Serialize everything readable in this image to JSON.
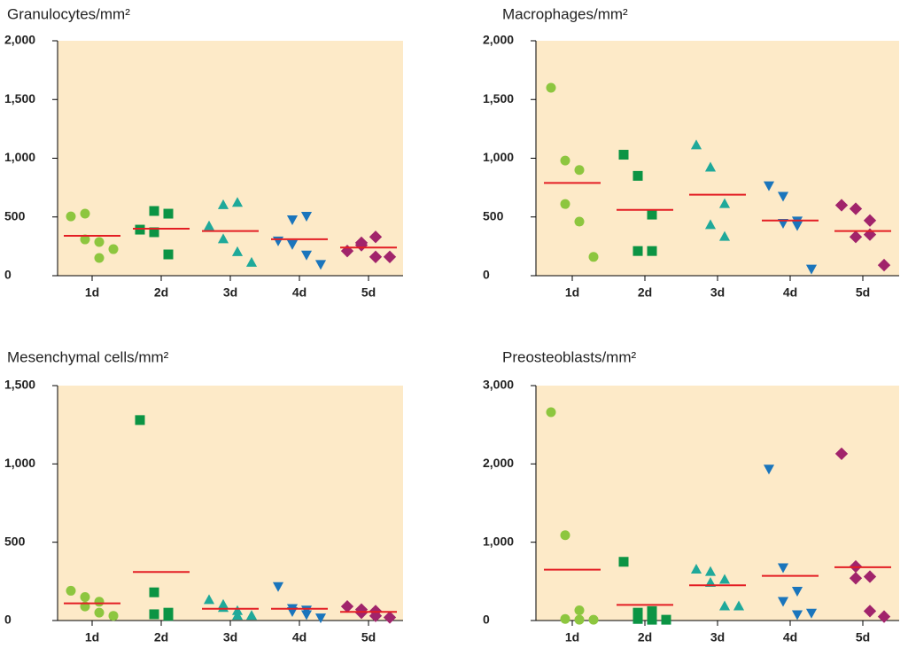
{
  "chart_data": [
    {
      "type": "dot",
      "title": "Granulocytes/mm²",
      "categories": [
        "1d",
        "2d",
        "3d",
        "4d",
        "5d"
      ],
      "values": [
        [
          505,
          528,
          287,
          309,
          151,
          226
        ],
        [
          392,
          370,
          528,
          551,
          181
        ],
        [
          420,
          600,
          620,
          310,
          200,
          110
        ],
        [
          300,
          480,
          510,
          270,
          180,
          100
        ],
        [
          210,
          280,
          330,
          260,
          160,
          160
        ]
      ],
      "medians": [
        340,
        400,
        380,
        310,
        240
      ],
      "ylim": [
        0,
        2000
      ],
      "yticks": [
        0,
        500,
        {
          "value": 1000,
          "label": "1,000"
        },
        {
          "value": 1500,
          "label": "1,500"
        },
        {
          "value": 2000,
          "label": "2,000"
        }
      ],
      "colors": [
        "#8dc63f",
        "#0b9444",
        "#1fa99a",
        "#1a75bc",
        "#a1246b"
      ],
      "markers": [
        "circle",
        "square",
        "triangle-up",
        "triangle-down",
        "diamond"
      ],
      "median_color": "#e31e24"
    },
    {
      "type": "dot",
      "title": "Macrophages/mm²",
      "categories": [
        "1d",
        "2d",
        "3d",
        "4d",
        "5d"
      ],
      "values": [
        [
          1600,
          980,
          900,
          610,
          460,
          160
        ],
        [
          1030,
          850,
          520,
          210,
          210
        ],
        [
          1110,
          920,
          610,
          430,
          330
        ],
        [
          770,
          680,
          470,
          450,
          430,
          60
        ],
        [
          600,
          570,
          470,
          330,
          350,
          90
        ]
      ],
      "medians": [
        790,
        560,
        690,
        470,
        380
      ],
      "ylim": [
        0,
        2000
      ],
      "yticks": [
        0,
        500,
        {
          "value": 1000,
          "label": "1,000"
        },
        {
          "value": 1500,
          "label": "1,500"
        },
        {
          "value": 2000,
          "label": "2,000"
        }
      ],
      "colors": [
        "#8dc63f",
        "#0b9444",
        "#1fa99a",
        "#1a75bc",
        "#a1246b"
      ],
      "markers": [
        "circle",
        "square",
        "triangle-up",
        "triangle-down",
        "diamond"
      ],
      "median_color": "#e31e24"
    },
    {
      "type": "dot",
      "title": "Mesenchymal cells/mm²",
      "categories": [
        "1d",
        "2d",
        "3d",
        "4d",
        "5d"
      ],
      "values": [
        [
          190,
          150,
          120,
          90,
          50,
          30
        ],
        [
          1280,
          180,
          50,
          40,
          30
        ],
        [
          130,
          100,
          60,
          80,
          30,
          30
        ],
        [
          220,
          80,
          70,
          60,
          40,
          20
        ],
        [
          90,
          70,
          60,
          50,
          30,
          20
        ]
      ],
      "medians": [
        110,
        310,
        75,
        75,
        55
      ],
      "ylim": [
        0,
        1500
      ],
      "yticks": [
        0,
        500,
        {
          "value": 1000,
          "label": "1,000"
        },
        {
          "value": 1500,
          "label": "1,500"
        }
      ],
      "colors": [
        "#8dc63f",
        "#0b9444",
        "#1fa99a",
        "#1a75bc",
        "#a1246b"
      ],
      "markers": [
        "circle",
        "square",
        "triangle-up",
        "triangle-down",
        "diamond"
      ],
      "median_color": "#e31e24"
    },
    {
      "type": "dot",
      "title": "Preosteoblasts/mm²",
      "categories": [
        "1d",
        "2d",
        "3d",
        "4d",
        "5d"
      ],
      "values": [
        [
          2660,
          1090,
          130,
          20,
          10,
          10
        ],
        [
          750,
          100,
          120,
          20,
          10,
          10
        ],
        [
          650,
          620,
          520,
          480,
          180,
          180
        ],
        [
          1940,
          680,
          380,
          250,
          80,
          100
        ],
        [
          2130,
          690,
          560,
          540,
          120,
          50
        ]
      ],
      "medians": [
        650,
        200,
        450,
        570,
        680
      ],
      "ylim": [
        0,
        3000
      ],
      "yticks": [
        0,
        {
          "value": 1000,
          "label": "1,000"
        },
        {
          "value": 2000,
          "label": "2,000"
        },
        {
          "value": 3000,
          "label": "3,000"
        }
      ],
      "colors": [
        "#8dc63f",
        "#0b9444",
        "#1fa99a",
        "#1a75bc",
        "#a1246b"
      ],
      "markers": [
        "circle",
        "square",
        "triangle-up",
        "triangle-down",
        "diamond"
      ],
      "median_color": "#e31e24"
    }
  ]
}
